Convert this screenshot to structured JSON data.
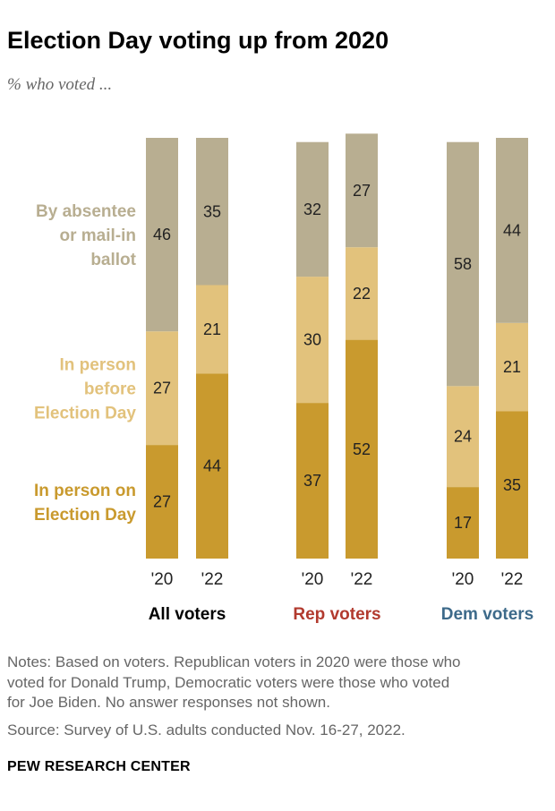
{
  "header": {
    "title": "Election Day voting up from 2020",
    "subtitle": "% who voted ..."
  },
  "footer": {
    "notes": "Notes: Based on voters. Republican voters in 2020 were those who voted for Donald Trump, Democratic voters were those who voted for Joe Biden. No answer responses not shown.",
    "notes_lines": [
      "Notes: Based on voters. Republican voters in 2020 were those who",
      "voted for Donald Trump, Democratic voters were those who voted",
      "for Joe Biden. No answer responses not shown."
    ],
    "source": "Source: Survey of U.S. adults conducted Nov. 16-27, 2022.",
    "brand": "PEW RESEARCH CENTER"
  },
  "chart_data": {
    "type": "bar",
    "stacked": true,
    "orientation": "vertical",
    "ylim": [
      0,
      100
    ],
    "grid": false,
    "legend": "left, inline labels",
    "categories": [
      "'20",
      "'22",
      "'20",
      "'22",
      "'20",
      "'22"
    ],
    "groups": [
      {
        "name": "All voters",
        "color": "#000000",
        "bars": [
          "'20",
          "'22"
        ]
      },
      {
        "name": "Rep voters",
        "color": "#b23a2e",
        "bars": [
          "'20",
          "'22"
        ]
      },
      {
        "name": "Dem voters",
        "color": "#3d6a8a",
        "bars": [
          "'20",
          "'22"
        ]
      }
    ],
    "series": [
      {
        "name": "In person on Election Day",
        "label_lines": [
          "In person on",
          "Election Day"
        ],
        "color": "#c99a2e",
        "values": [
          27,
          44,
          37,
          52,
          17,
          35
        ]
      },
      {
        "name": "In person before Election Day",
        "label_lines": [
          "In person",
          "before",
          "Election Day"
        ],
        "color": "#e2c27c",
        "values": [
          27,
          21,
          30,
          22,
          24,
          21
        ]
      },
      {
        "name": "By absentee or mail-in ballot",
        "label_lines": [
          "By absentee",
          "or mail-in",
          "ballot"
        ],
        "color": "#b8ae91",
        "values": [
          46,
          35,
          32,
          27,
          58,
          44
        ]
      }
    ],
    "colors": {
      "election_day": "#c99a2e",
      "before_election_day": "#e2c27c",
      "absentee": "#b8ae91",
      "rep": "#b23a2e",
      "dem": "#3d6a8a"
    }
  }
}
